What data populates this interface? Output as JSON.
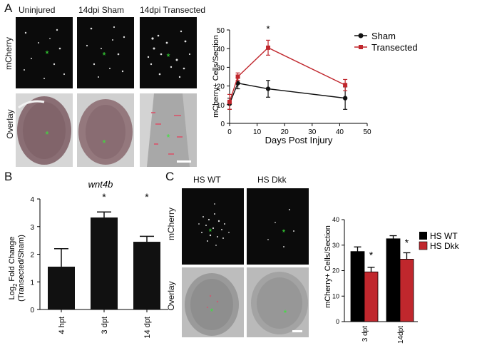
{
  "panels": {
    "a": {
      "letter": "A",
      "columns": [
        "Uninjured",
        "14dpi Sham",
        "14dpi Transected"
      ],
      "rows": [
        "mCherry",
        "Overlay"
      ]
    },
    "b": {
      "letter": "B"
    },
    "c": {
      "letter": "C",
      "columns": [
        "HS WT",
        "HS Dkk"
      ],
      "rows": [
        "mCherry",
        "Overlay"
      ]
    }
  },
  "colors": {
    "sham": "#111111",
    "transected": "#c0272d",
    "hs_wt": "#000000",
    "hs_dkk": "#c0272d",
    "marker": "#39e639"
  },
  "chart_data": [
    {
      "type": "line",
      "panel": "A",
      "xlabel": "Days Post Injury",
      "ylabel": "mCherry+ Cells/Section",
      "xlim": [
        0,
        50
      ],
      "ylim": [
        0,
        50
      ],
      "xticks": [
        "0",
        "10",
        "20",
        "30",
        "40",
        "50"
      ],
      "yticks": [
        "0",
        "10",
        "20",
        "30",
        "40",
        "50"
      ],
      "legend_position": "top-right",
      "series": [
        {
          "name": "Sham",
          "x": [
            0,
            3,
            14,
            42
          ],
          "y": [
            10.5,
            21.5,
            18.5,
            13.5
          ],
          "err": [
            3,
            3,
            4.5,
            6
          ]
        },
        {
          "name": "Transected",
          "x": [
            0,
            3,
            14,
            42
          ],
          "y": [
            11.5,
            25,
            40.5,
            20.5
          ],
          "err": [
            4,
            2,
            4,
            3
          ]
        }
      ],
      "annotations": [
        {
          "text": "*",
          "x": 14
        }
      ]
    },
    {
      "type": "bar",
      "panel": "B",
      "title": "wnt4b",
      "ylabel_main": "Log",
      "ylabel_sub": "2",
      "ylabel_rest": "Fold Change",
      "ylabel_line2": "(Transected/Sham)",
      "categories": [
        "4 hpt",
        "3 dpt",
        "14 dpt"
      ],
      "values": [
        1.55,
        3.33,
        2.45
      ],
      "errors": [
        0.65,
        0.2,
        0.2
      ],
      "ylim": [
        0,
        4
      ],
      "yticks": [
        "0",
        "1",
        "2",
        "3",
        "4"
      ],
      "stars": [
        "",
        "*",
        "*"
      ]
    },
    {
      "type": "bar",
      "panel": "C",
      "ylabel": "mCherry+ Cells/Section",
      "categories": [
        "3 dpt",
        "14dpt"
      ],
      "series": [
        {
          "name": "HS WT",
          "values": [
            27.5,
            32.5
          ],
          "errors": [
            1.8,
            1.2
          ]
        },
        {
          "name": "HS Dkk",
          "values": [
            19.5,
            24.5
          ],
          "errors": [
            1.8,
            2.5
          ]
        }
      ],
      "ylim": [
        0,
        40
      ],
      "yticks": [
        "0",
        "10",
        "20",
        "30",
        "40"
      ],
      "legend_position": "right",
      "stars": [
        "*",
        "*"
      ]
    }
  ]
}
